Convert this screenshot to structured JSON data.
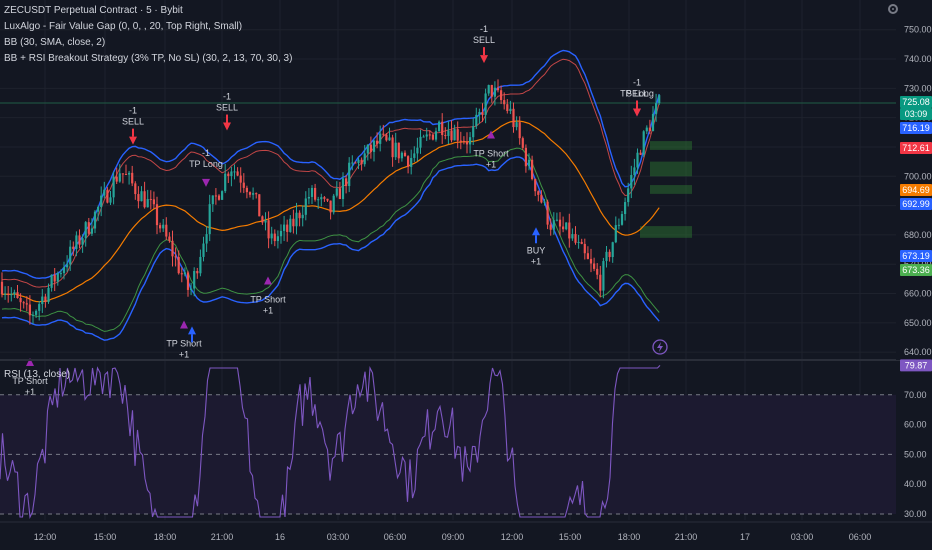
{
  "header": {
    "symbol_line": "ZECUSDT Perpetual Contract · 5 · Bybit",
    "indicators": [
      "LuxAlgo - Fair Value Gap (0, 0, , 20, Top Right, Small)",
      "BB (30, SMA, close, 2)",
      "BB + RSI Breakout Strategy (3% TP, No SL) (30, 2, 13, 70, 30, 3)"
    ],
    "rsi_title": "RSI (13, close)"
  },
  "colors": {
    "background": "#131722",
    "grid": "#1e222d",
    "bull": "#26a69a",
    "bear": "#ef5350",
    "bb_band": "#2962ff",
    "bb_basis": "#f57c00",
    "rsi_line": "#7e57c2",
    "rsi_band_fill": "#1c1a30",
    "hline_green": "#1f5c45",
    "fvg_green": "#2e7d32",
    "sell_arrow": "#f23645",
    "buy_arrow": "#2962ff",
    "tp_marker": "#9c27b0",
    "label_text": "#d1d4dc"
  },
  "price_badges": [
    {
      "value": "725.08",
      "bg": "#089981",
      "fg": "#ffffff"
    },
    {
      "value": "03:09",
      "bg": "#089981",
      "fg": "#ffffff"
    },
    {
      "value": "716.19",
      "bg": "#2962ff",
      "fg": "#ffffff"
    },
    {
      "value": "712.61",
      "bg": "#f23645",
      "fg": "#ffffff"
    },
    {
      "value": "694.69",
      "bg": "#f57c00",
      "fg": "#ffffff"
    },
    {
      "value": "692.99",
      "bg": "#2962ff",
      "fg": "#ffffff"
    },
    {
      "value": "673.19",
      "bg": "#2962ff",
      "fg": "#ffffff"
    },
    {
      "value": "673.36",
      "bg": "#4caf50",
      "fg": "#ffffff"
    }
  ],
  "rsi_badge": {
    "value": "79.87",
    "bg": "#7e57c2",
    "fg": "#ffffff"
  },
  "icon": "lightning-icon",
  "chart_data": {
    "type": "candlestick",
    "price_axis": {
      "ticks": [
        640,
        650,
        660,
        670,
        680,
        690,
        700,
        710,
        720,
        730,
        740,
        750
      ],
      "labels": [
        "640.00",
        "650.00",
        "660.00",
        "670.00",
        "680.00",
        "690.00",
        "700.00",
        "710.00",
        "720.00",
        "730.00",
        "740.00",
        "750.00"
      ],
      "range": [
        638,
        754
      ]
    },
    "time_axis": {
      "labels": [
        "12:00",
        "15:00",
        "18:00",
        "21:00",
        "16",
        "03:00",
        "06:00",
        "09:00",
        "12:00",
        "15:00",
        "18:00",
        "21:00",
        "17",
        "03:00",
        "06:00"
      ]
    },
    "price_path": [
      [
        0,
        664
      ],
      [
        30,
        652
      ],
      [
        60,
        668
      ],
      [
        90,
        684
      ],
      [
        120,
        702
      ],
      [
        150,
        690
      ],
      [
        170,
        676
      ],
      [
        190,
        660
      ],
      [
        210,
        688
      ],
      [
        230,
        704
      ],
      [
        250,
        696
      ],
      [
        270,
        678
      ],
      [
        290,
        682
      ],
      [
        310,
        694
      ],
      [
        330,
        688
      ],
      [
        350,
        702
      ],
      [
        380,
        712
      ],
      [
        410,
        706
      ],
      [
        440,
        718
      ],
      [
        470,
        712
      ],
      [
        490,
        730
      ],
      [
        510,
        722
      ],
      [
        530,
        702
      ],
      [
        550,
        684
      ],
      [
        570,
        680
      ],
      [
        600,
        664
      ],
      [
        620,
        686
      ],
      [
        640,
        710
      ],
      [
        655,
        722
      ],
      [
        660,
        725
      ]
    ],
    "horizontal_line": 725,
    "fvg_boxes": [
      [
        650,
        664,
        712,
        709
      ],
      [
        650,
        664,
        705,
        700
      ],
      [
        650,
        664,
        697,
        694
      ],
      [
        640,
        664,
        683,
        679
      ]
    ],
    "signals": [
      {
        "x": 30,
        "label": "TP Short",
        "sub": "+1",
        "side": "bottom",
        "kind": "tp"
      },
      {
        "x": 133,
        "label": "SELL",
        "sub": "-1",
        "side": "top",
        "kind": "sell"
      },
      {
        "x": 184,
        "label": "TP Short",
        "sub": "+1",
        "side": "bottom",
        "kind": "tp"
      },
      {
        "x": 192,
        "label": "",
        "sub": "",
        "side": "bottom",
        "kind": "buy"
      },
      {
        "x": 206,
        "label": "TP Long",
        "sub": "-1",
        "side": "top",
        "kind": "tp"
      },
      {
        "x": 227,
        "label": "SELL",
        "sub": "-1",
        "side": "top",
        "kind": "sell"
      },
      {
        "x": 268,
        "label": "TP Short",
        "sub": "+1",
        "side": "bottom",
        "kind": "tp"
      },
      {
        "x": 484,
        "label": "SELL",
        "sub": "-1",
        "side": "top",
        "kind": "sell"
      },
      {
        "x": 491,
        "label": "TP Short",
        "sub": "+1",
        "side": "bottom",
        "kind": "tp"
      },
      {
        "x": 536,
        "label": "BUY",
        "sub": "+1",
        "side": "bottom",
        "kind": "buy"
      },
      {
        "x": 637,
        "label": "TP Long",
        "sub": "",
        "side": "top",
        "kind": "tp"
      },
      {
        "x": 637,
        "label": "SELL",
        "sub": "-1",
        "side": "top",
        "kind": "sell"
      }
    ],
    "rsi": {
      "axis_ticks": [
        30,
        40,
        50,
        60,
        70,
        80
      ],
      "axis_labels": [
        "30.00",
        "40.00",
        "50.00",
        "60.00",
        "70.00",
        "80.00"
      ],
      "range": [
        28,
        81
      ],
      "overbought": 70,
      "oversold": 30,
      "mid": 50,
      "current": 79.87
    }
  }
}
